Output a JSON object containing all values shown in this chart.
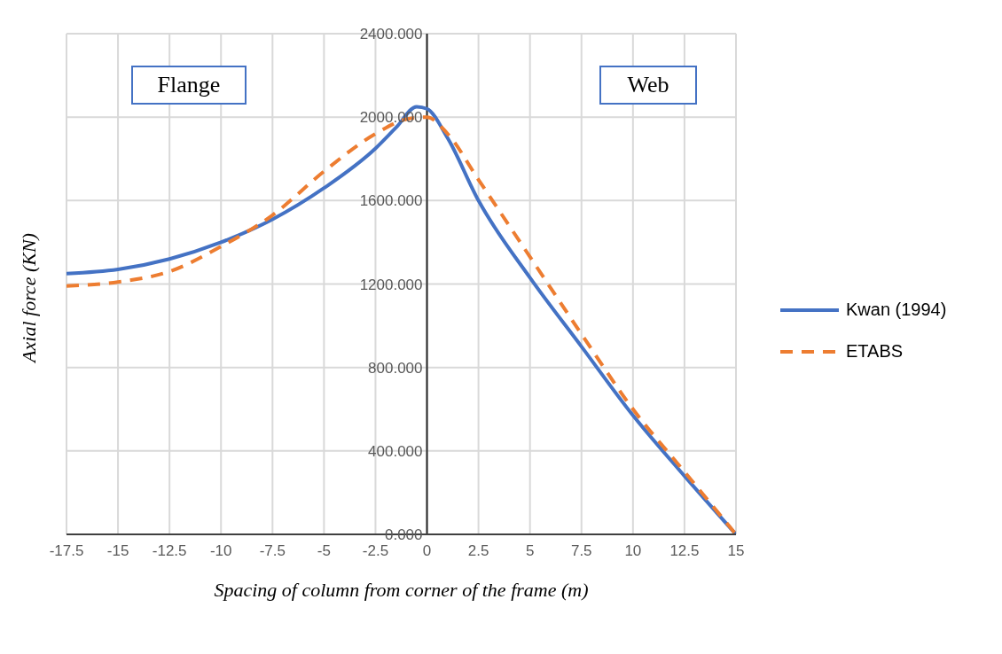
{
  "chart_data": {
    "type": "line",
    "xlabel": "Spacing of column from corner of the frame (m)",
    "ylabel": "Axial force (KN)",
    "annotations": [
      "Flange",
      "Web"
    ],
    "series": [
      {
        "name": "Kwan (1994)",
        "color": "#4472c4",
        "line_style": "solid",
        "x": [
          -17.5,
          -15,
          -12.5,
          -10,
          -7.5,
          -5,
          -2.5,
          -1.5,
          -0.5,
          0,
          1,
          2.5,
          5,
          7.5,
          10,
          12.5,
          15
        ],
        "values": [
          1250,
          1270,
          1320,
          1400,
          1510,
          1660,
          1850,
          1950,
          2050,
          2040,
          1900,
          1600,
          1230,
          900,
          570,
          280,
          0
        ]
      },
      {
        "name": "ETABS",
        "color": "#ed7d31",
        "line_style": "dashed",
        "x": [
          -17.5,
          -15,
          -12.5,
          -10,
          -7.5,
          -5,
          -2.5,
          -1,
          0,
          1,
          2.5,
          5,
          7.5,
          10,
          12.5,
          15
        ],
        "values": [
          1190,
          1210,
          1260,
          1380,
          1530,
          1740,
          1920,
          1990,
          2000,
          1920,
          1700,
          1330,
          960,
          600,
          300,
          0
        ]
      }
    ],
    "xlim": [
      -17.5,
      15
    ],
    "xticks": [
      -17.5,
      -15,
      -12.5,
      -10,
      -7.5,
      -5,
      -2.5,
      0,
      2.5,
      5,
      7.5,
      10,
      12.5,
      15
    ],
    "ylim": [
      0,
      2400
    ],
    "yticks": [
      {
        "value": 0,
        "label": "0.000"
      },
      {
        "value": 400,
        "label": "400.000"
      },
      {
        "value": 800,
        "label": "800.000"
      },
      {
        "value": 1200,
        "label": "1200.000"
      },
      {
        "value": 1600,
        "label": "1600.000"
      },
      {
        "value": 2000,
        "label": "2000.000"
      },
      {
        "value": 2400,
        "label": "2400.000"
      }
    ],
    "grid": true,
    "legend": "right",
    "marker": "none"
  }
}
